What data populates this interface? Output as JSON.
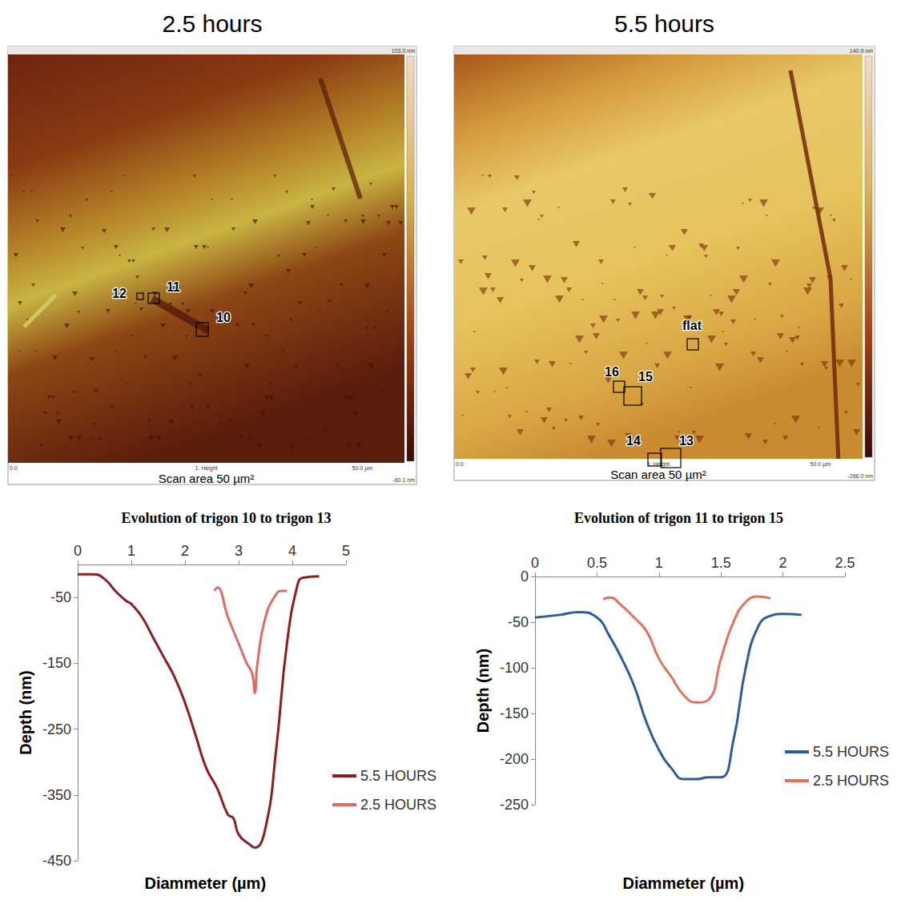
{
  "panels": [
    {
      "title": "2.5 hours",
      "caption": "Scan area 50 µm²",
      "labels": [
        "12",
        "11",
        "10"
      ],
      "colorbar_max": "103.0 nm",
      "colorbar_min": "-60.1 nm",
      "axis_start": "0.0",
      "axis_name": "1: Height",
      "axis_end": "50.0 µm"
    },
    {
      "title": "5.5 hours",
      "caption": "Scan area 50 µm²",
      "labels": [
        "flat",
        "16",
        "15",
        "14",
        "13"
      ],
      "colorbar_max": "140.9 nm",
      "colorbar_min": "-266.0 nm",
      "axis_start": "0.0",
      "axis_name": "1: Height",
      "axis_end": "50.0 µm"
    }
  ],
  "chart_data": [
    {
      "type": "line",
      "title": "Evolution of trigon 10 to trigon 13",
      "xlabel": "Diammeter (µm)",
      "ylabel": "Depth (nm)",
      "xlim": [
        0,
        5
      ],
      "xticks": [
        0,
        1,
        2,
        3,
        4,
        5
      ],
      "ylim": [
        -450,
        0
      ],
      "yticks": [
        -450,
        -350,
        -250,
        -150,
        -50
      ],
      "grid": false,
      "legend": "right",
      "series": [
        {
          "name": "5.5 HOURS",
          "color": "#8b1f1f",
          "x": [
            0,
            0.3,
            0.5,
            0.7,
            0.9,
            1.0,
            1.2,
            1.4,
            1.6,
            1.8,
            2.0,
            2.2,
            2.4,
            2.6,
            2.8,
            2.9,
            3.0,
            3.2,
            3.3,
            3.5,
            3.7,
            3.9,
            4.1,
            4.2,
            4.5
          ],
          "values": [
            -15,
            -15,
            -22,
            -40,
            -55,
            -60,
            -80,
            -110,
            -140,
            -170,
            -210,
            -260,
            -310,
            -340,
            -380,
            -385,
            -410,
            -425,
            -430,
            -400,
            -280,
            -120,
            -30,
            -20,
            -18
          ]
        },
        {
          "name": "2.5 HOURS",
          "color": "#dd6b66",
          "x": [
            2.55,
            2.6,
            2.8,
            3.0,
            3.15,
            3.25,
            3.3,
            3.35,
            3.5,
            3.7,
            3.8,
            3.9
          ],
          "values": [
            -40,
            -35,
            -80,
            -120,
            -150,
            -165,
            -195,
            -150,
            -80,
            -45,
            -40,
            -40
          ]
        }
      ]
    },
    {
      "type": "line",
      "title": "Evolution of trigon 11 to trigon 15",
      "xlabel": "Diammeter (µm)",
      "ylabel": "Depth (nm)",
      "xlim": [
        0,
        2.5
      ],
      "xticks": [
        0,
        0.5,
        1,
        1.5,
        2,
        2.5
      ],
      "ylim": [
        -250,
        0
      ],
      "yticks": [
        -250,
        -200,
        -150,
        -100,
        -50,
        0
      ],
      "grid": false,
      "legend": "right",
      "series": [
        {
          "name": "5.5 HOURS",
          "color": "#2e5c9a",
          "x": [
            0,
            0.2,
            0.35,
            0.5,
            0.6,
            0.7,
            0.8,
            0.9,
            1.0,
            1.1,
            1.2,
            1.3,
            1.4,
            1.5,
            1.6,
            1.7,
            1.8,
            1.9,
            2.0,
            2.15
          ],
          "values": [
            -45,
            -42,
            -39,
            -45,
            -65,
            -90,
            -120,
            -160,
            -190,
            -210,
            -222,
            -222,
            -220,
            -220,
            -180,
            -100,
            -55,
            -43,
            -41,
            -42
          ]
        },
        {
          "name": "2.5 HOURS",
          "color": "#e0725f",
          "x": [
            0.55,
            0.6,
            0.7,
            0.8,
            0.9,
            1.0,
            1.1,
            1.2,
            1.3,
            1.4,
            1.5,
            1.6,
            1.7,
            1.8,
            1.9
          ],
          "values": [
            -25,
            -23,
            -32,
            -45,
            -60,
            -90,
            -110,
            -130,
            -138,
            -135,
            -90,
            -50,
            -28,
            -22,
            -24
          ]
        }
      ]
    }
  ]
}
